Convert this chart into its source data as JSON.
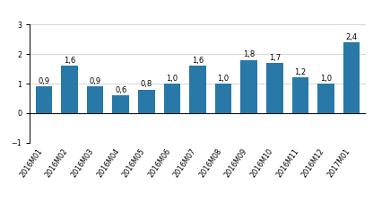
{
  "categories": [
    "2016M01",
    "2016M02",
    "2016M03",
    "2016M04",
    "2016M05",
    "2016M06",
    "2016M07",
    "2016M08",
    "2016M09",
    "2016M10",
    "2016M11",
    "2016M12",
    "2017M01"
  ],
  "values": [
    0.9,
    1.6,
    0.9,
    0.6,
    0.8,
    1.0,
    1.6,
    1.0,
    1.8,
    1.7,
    1.2,
    1.0,
    2.4
  ],
  "bar_color": "#2878a8",
  "ylim": [
    -1,
    3
  ],
  "yticks": [
    -1,
    0,
    1,
    2,
    3
  ],
  "value_labels": [
    "0,9",
    "1,6",
    "0,9",
    "0,6",
    "0,8",
    "1,0",
    "1,6",
    "1,0",
    "1,8",
    "1,7",
    "1,2",
    "1,0",
    "2,4"
  ],
  "label_fontsize": 6.0,
  "tick_fontsize": 5.8,
  "background_color": "#ffffff",
  "grid_color": "#d0d0d0"
}
